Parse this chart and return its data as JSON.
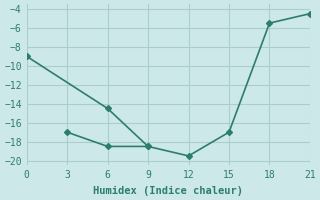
{
  "line1_x": [
    0,
    6,
    9,
    12,
    15,
    18,
    21
  ],
  "line1_y": [
    -9,
    -14.5,
    -18.5,
    -19.5,
    -17,
    -5.5,
    -4.5
  ],
  "line2_x": [
    3,
    6,
    9
  ],
  "line2_y": [
    -17,
    -18.5,
    -18.5
  ],
  "line_color": "#2d7d6f",
  "bg_color": "#cce8e8",
  "grid_color": "#aacece",
  "xlabel": "Humidex (Indice chaleur)",
  "xlim": [
    0,
    21
  ],
  "ylim": [
    -20.5,
    -3.5
  ],
  "xticks": [
    0,
    3,
    6,
    9,
    12,
    15,
    18,
    21
  ],
  "yticks": [
    -20,
    -18,
    -16,
    -14,
    -12,
    -10,
    -8,
    -6,
    -4
  ],
  "marker": "D",
  "markersize": 3,
  "linewidth": 1.2
}
